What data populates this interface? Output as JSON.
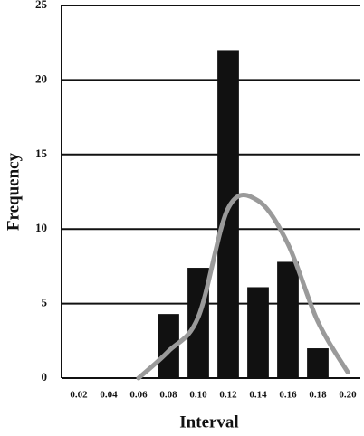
{
  "chart_data": {
    "type": "bar",
    "x_label": "Interval",
    "y_label": "Frequency",
    "categories": [
      "0.02",
      "0.04",
      "0.06",
      "0.08",
      "0.10",
      "0.12",
      "0.14",
      "0.16",
      "0.18",
      "0.20"
    ],
    "values": [
      0,
      0,
      0,
      4.3,
      7.4,
      22,
      6.1,
      7.8,
      2,
      0
    ],
    "color": "#111111",
    "curve": {
      "color": "#9a9a9a",
      "values": [
        null,
        null,
        0,
        1.8,
        4.1,
        11.4,
        11.9,
        9.0,
        3.8,
        0.4
      ]
    },
    "ylim": [
      0,
      25
    ],
    "yticks": [
      0,
      5,
      10,
      15,
      20,
      25
    ],
    "grid": true
  }
}
